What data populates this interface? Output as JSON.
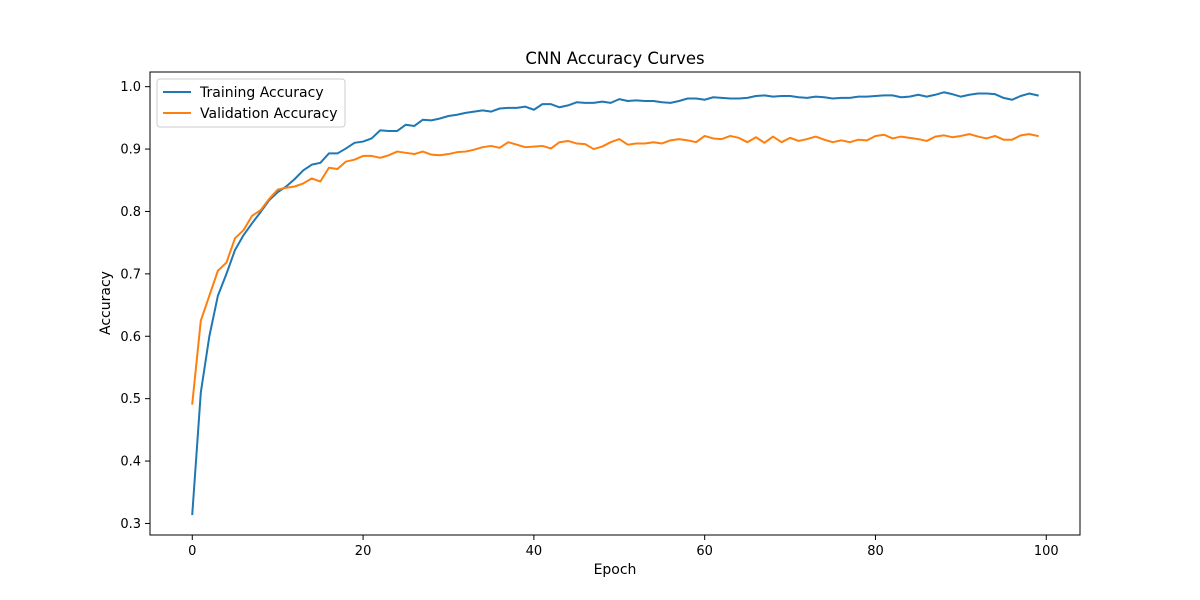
{
  "chart_data": {
    "type": "line",
    "title": "CNN Accuracy Curves",
    "xlabel": "Epoch",
    "ylabel": "Accuracy",
    "xlim": [
      -4.95,
      103.95
    ],
    "ylim": [
      0.2815,
      1.0235
    ],
    "xticks": [
      0,
      20,
      40,
      60,
      80,
      100
    ],
    "yticks": [
      0.3,
      0.4,
      0.5,
      0.6,
      0.7,
      0.8,
      0.9,
      1.0
    ],
    "grid": false,
    "legend": "upper left",
    "series": [
      {
        "name": "Training Accuracy",
        "color": "#1f77b4",
        "x": [
          0,
          1,
          2,
          3,
          4,
          5,
          6,
          7,
          8,
          9,
          10,
          11,
          12,
          13,
          14,
          15,
          16,
          17,
          18,
          19,
          20,
          21,
          22,
          23,
          24,
          25,
          26,
          27,
          28,
          29,
          30,
          31,
          32,
          33,
          34,
          35,
          36,
          37,
          38,
          39,
          40,
          41,
          42,
          43,
          44,
          45,
          46,
          47,
          48,
          49,
          50,
          51,
          52,
          53,
          54,
          55,
          56,
          57,
          58,
          59,
          60,
          61,
          62,
          63,
          64,
          65,
          66,
          67,
          68,
          69,
          70,
          71,
          72,
          73,
          74,
          75,
          76,
          77,
          78,
          79,
          80,
          81,
          82,
          83,
          84,
          85,
          86,
          87,
          88,
          89,
          90,
          91,
          92,
          93,
          94,
          95,
          96,
          97,
          98,
          99
        ],
        "values": [
          0.315,
          0.51,
          0.6,
          0.665,
          0.7,
          0.738,
          0.762,
          0.781,
          0.799,
          0.818,
          0.831,
          0.84,
          0.852,
          0.866,
          0.875,
          0.878,
          0.893,
          0.893,
          0.901,
          0.91,
          0.912,
          0.917,
          0.93,
          0.929,
          0.929,
          0.939,
          0.937,
          0.947,
          0.946,
          0.949,
          0.953,
          0.955,
          0.958,
          0.96,
          0.962,
          0.96,
          0.965,
          0.966,
          0.966,
          0.968,
          0.963,
          0.972,
          0.972,
          0.967,
          0.97,
          0.975,
          0.974,
          0.974,
          0.976,
          0.974,
          0.98,
          0.977,
          0.978,
          0.977,
          0.977,
          0.975,
          0.974,
          0.977,
          0.981,
          0.981,
          0.979,
          0.983,
          0.982,
          0.981,
          0.981,
          0.982,
          0.985,
          0.986,
          0.984,
          0.985,
          0.985,
          0.983,
          0.982,
          0.984,
          0.983,
          0.981,
          0.982,
          0.982,
          0.984,
          0.984,
          0.985,
          0.986,
          0.986,
          0.983,
          0.984,
          0.987,
          0.984,
          0.987,
          0.991,
          0.988,
          0.984,
          0.987,
          0.989,
          0.989,
          0.988,
          0.982,
          0.979,
          0.985,
          0.989,
          0.986
        ]
      },
      {
        "name": "Validation Accuracy",
        "color": "#ff7f0e",
        "x": [
          0,
          1,
          2,
          3,
          4,
          5,
          6,
          7,
          8,
          9,
          10,
          11,
          12,
          13,
          14,
          15,
          16,
          17,
          18,
          19,
          20,
          21,
          22,
          23,
          24,
          25,
          26,
          27,
          28,
          29,
          30,
          31,
          32,
          33,
          34,
          35,
          36,
          37,
          38,
          39,
          40,
          41,
          42,
          43,
          44,
          45,
          46,
          47,
          48,
          49,
          50,
          51,
          52,
          53,
          54,
          55,
          56,
          57,
          58,
          59,
          60,
          61,
          62,
          63,
          64,
          65,
          66,
          67,
          68,
          69,
          70,
          71,
          72,
          73,
          74,
          75,
          76,
          77,
          78,
          79,
          80,
          81,
          82,
          83,
          84,
          85,
          86,
          87,
          88,
          89,
          90,
          91,
          92,
          93,
          94,
          95,
          96,
          97,
          98,
          99
        ],
        "values": [
          0.492,
          0.625,
          0.665,
          0.705,
          0.718,
          0.757,
          0.77,
          0.793,
          0.802,
          0.82,
          0.835,
          0.838,
          0.84,
          0.845,
          0.853,
          0.848,
          0.87,
          0.868,
          0.88,
          0.883,
          0.889,
          0.889,
          0.886,
          0.89,
          0.896,
          0.894,
          0.892,
          0.896,
          0.891,
          0.89,
          0.892,
          0.895,
          0.896,
          0.899,
          0.903,
          0.905,
          0.902,
          0.911,
          0.907,
          0.903,
          0.904,
          0.905,
          0.901,
          0.911,
          0.913,
          0.909,
          0.908,
          0.9,
          0.904,
          0.911,
          0.916,
          0.907,
          0.909,
          0.909,
          0.911,
          0.909,
          0.914,
          0.916,
          0.914,
          0.911,
          0.921,
          0.917,
          0.916,
          0.921,
          0.918,
          0.911,
          0.919,
          0.91,
          0.92,
          0.911,
          0.918,
          0.913,
          0.916,
          0.92,
          0.915,
          0.911,
          0.914,
          0.911,
          0.915,
          0.914,
          0.921,
          0.923,
          0.917,
          0.92,
          0.918,
          0.916,
          0.913,
          0.92,
          0.922,
          0.919,
          0.921,
          0.924,
          0.92,
          0.917,
          0.921,
          0.915,
          0.915,
          0.922,
          0.924,
          0.921
        ]
      }
    ]
  }
}
